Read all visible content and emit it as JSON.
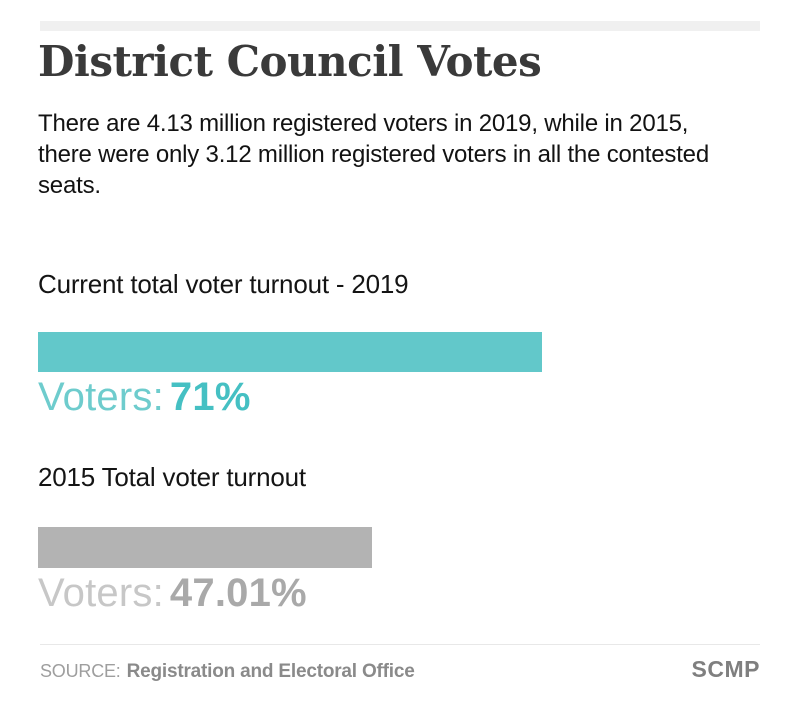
{
  "page": {
    "title": "District Council Votes",
    "subtitle": "There are 4.13 million registered voters in 2019, while in 2015, there were only 3.12 million registered voters in all the contested seats.",
    "source_label": "SOURCE:",
    "source_name": "Registration and Electoral Office",
    "brand": "SCMP"
  },
  "chart_data": {
    "type": "bar",
    "orientation": "horizontal",
    "title": "District Council Votes",
    "subtitle": "There are 4.13 million registered voters in 2019, while in 2015, there were only 3.12 million registered voters in all the contested seats.",
    "value_axis": {
      "min": 0,
      "max": 100,
      "unit": "%",
      "visible": false
    },
    "gridlines": false,
    "legend": false,
    "series": [
      {
        "label": "Current total voter turnout - 2019",
        "value": 71,
        "value_text": "71%",
        "value_prefix": "Voters:",
        "bar_color": "#62c8ca",
        "prefix_color": "#6ecccd",
        "value_color": "#45c0c3"
      },
      {
        "label": "2015 Total voter turnout",
        "value": 47.01,
        "value_text": "47.01%",
        "value_prefix": "Voters:",
        "bar_color": "#b3b3b3",
        "prefix_color": "#c7c7c7",
        "value_color": "#a9a9a9"
      }
    ],
    "source": "Registration and Electoral Office",
    "brand": "SCMP"
  },
  "colors": {
    "background": "#ffffff",
    "top_band": "#f0f0f0",
    "title_text": "#3a3a3a",
    "body_text": "#121212",
    "divider": "#e8e8e8",
    "source_label": "#9e9e9e",
    "source_name": "#8a8a8a",
    "brand": "#7f7f7f"
  }
}
